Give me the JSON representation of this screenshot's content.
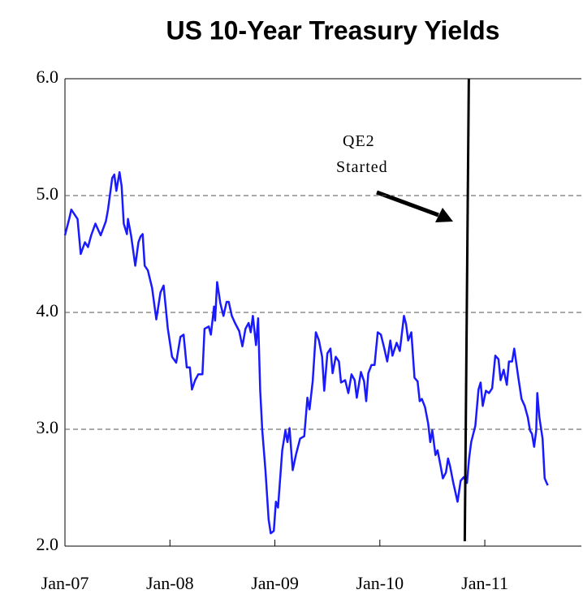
{
  "chart_data": {
    "type": "line",
    "title": "US 10-Year Treasury Yields",
    "annotation": [
      "QE2",
      "Started"
    ],
    "event_x": 2010.84,
    "color": "#1a1aff",
    "grid": true,
    "xlim": [
      2007,
      2011.92
    ],
    "ylim": [
      2,
      6
    ],
    "yticks": [
      {
        "value": 2,
        "label": "2.0"
      },
      {
        "value": 3,
        "label": "3.0"
      },
      {
        "value": 4,
        "label": "4.0"
      },
      {
        "value": 5,
        "label": "5.0"
      },
      {
        "value": 6,
        "label": "6.0"
      }
    ],
    "xticks": [
      {
        "value": 2007,
        "label": "Jan-07"
      },
      {
        "value": 2008,
        "label": "Jan-08"
      },
      {
        "value": 2009,
        "label": "Jan-09"
      },
      {
        "value": 2010,
        "label": "Jan-10"
      },
      {
        "value": 2011,
        "label": "Jan-11"
      }
    ],
    "x": [
      2007.0,
      2007.04,
      2007.06,
      2007.12,
      2007.15,
      2007.19,
      2007.22,
      2007.25,
      2007.29,
      2007.34,
      2007.39,
      2007.41,
      2007.45,
      2007.47,
      2007.49,
      2007.52,
      2007.54,
      2007.56,
      2007.59,
      2007.6,
      2007.63,
      2007.67,
      2007.7,
      2007.72,
      2007.74,
      2007.76,
      2007.79,
      2007.83,
      2007.87,
      2007.91,
      2007.94,
      2007.98,
      2008.02,
      2008.06,
      2008.1,
      2008.13,
      2008.16,
      2008.19,
      2008.21,
      2008.24,
      2008.27,
      2008.31,
      2008.33,
      2008.37,
      2008.39,
      2008.42,
      2008.43,
      2008.45,
      2008.48,
      2008.51,
      2008.54,
      2008.56,
      2008.59,
      2008.62,
      2008.66,
      2008.69,
      2008.72,
      2008.75,
      2008.77,
      2008.79,
      2008.82,
      2008.84,
      2008.86,
      2008.88,
      2008.91,
      2008.94,
      2008.96,
      2008.99,
      2009.01,
      2009.03,
      2009.07,
      2009.1,
      2009.12,
      2009.14,
      2009.17,
      2009.2,
      2009.24,
      2009.28,
      2009.31,
      2009.33,
      2009.36,
      2009.39,
      2009.42,
      2009.45,
      2009.47,
      2009.5,
      2009.53,
      2009.55,
      2009.58,
      2009.61,
      2009.63,
      2009.67,
      2009.7,
      2009.73,
      2009.76,
      2009.78,
      2009.82,
      2009.85,
      2009.87,
      2009.89,
      2009.92,
      2009.95,
      2009.98,
      2010.01,
      2010.04,
      2010.07,
      2010.1,
      2010.12,
      2010.16,
      2010.19,
      2010.23,
      2010.25,
      2010.27,
      2010.3,
      2010.33,
      2010.36,
      2010.38,
      2010.4,
      2010.43,
      2010.46,
      2010.48,
      2010.5,
      2010.53,
      2010.55,
      2010.58,
      2010.6,
      2010.63,
      2010.65,
      2010.67,
      2010.7,
      2010.74,
      2010.77,
      2010.8,
      2010.83,
      2010.85,
      2010.87,
      2010.91,
      2010.94,
      2010.96,
      2010.98,
      2011.01,
      2011.04,
      2011.07,
      2011.1,
      2011.13,
      2011.15,
      2011.18,
      2011.21,
      2011.23,
      2011.26,
      2011.28,
      2011.32,
      2011.35,
      2011.38,
      2011.41,
      2011.43,
      2011.45,
      2011.47,
      2011.49,
      2011.5,
      2011.52,
      2011.55,
      2011.57,
      2011.6
    ],
    "values": [
      4.66,
      4.8,
      4.88,
      4.8,
      4.5,
      4.6,
      4.56,
      4.66,
      4.76,
      4.66,
      4.78,
      4.88,
      5.15,
      5.18,
      5.04,
      5.2,
      5.08,
      4.76,
      4.67,
      4.8,
      4.66,
      4.4,
      4.6,
      4.65,
      4.67,
      4.4,
      4.36,
      4.21,
      3.94,
      4.17,
      4.23,
      3.86,
      3.62,
      3.57,
      3.79,
      3.81,
      3.53,
      3.53,
      3.34,
      3.42,
      3.47,
      3.47,
      3.86,
      3.88,
      3.81,
      4.05,
      3.93,
      4.26,
      4.08,
      3.97,
      4.09,
      4.09,
      3.97,
      3.91,
      3.84,
      3.71,
      3.86,
      3.91,
      3.83,
      3.97,
      3.72,
      3.95,
      3.34,
      2.99,
      2.65,
      2.23,
      2.11,
      2.13,
      2.38,
      2.33,
      2.82,
      2.99,
      2.89,
      3.01,
      2.65,
      2.78,
      2.92,
      2.94,
      3.27,
      3.17,
      3.41,
      3.83,
      3.76,
      3.62,
      3.33,
      3.65,
      3.69,
      3.48,
      3.62,
      3.58,
      3.4,
      3.42,
      3.31,
      3.47,
      3.42,
      3.27,
      3.49,
      3.41,
      3.24,
      3.48,
      3.55,
      3.55,
      3.83,
      3.81,
      3.7,
      3.58,
      3.76,
      3.63,
      3.74,
      3.67,
      3.97,
      3.9,
      3.76,
      3.83,
      3.44,
      3.41,
      3.24,
      3.26,
      3.19,
      3.05,
      2.89,
      2.99,
      2.78,
      2.82,
      2.68,
      2.58,
      2.63,
      2.75,
      2.68,
      2.54,
      2.38,
      2.56,
      2.59,
      2.54,
      2.75,
      2.89,
      3.03,
      3.34,
      3.4,
      3.2,
      3.33,
      3.31,
      3.35,
      3.63,
      3.6,
      3.42,
      3.51,
      3.38,
      3.58,
      3.58,
      3.69,
      3.44,
      3.26,
      3.2,
      3.1,
      2.99,
      2.96,
      2.85,
      2.99,
      3.31,
      3.1,
      2.92,
      2.58,
      2.52
    ]
  }
}
